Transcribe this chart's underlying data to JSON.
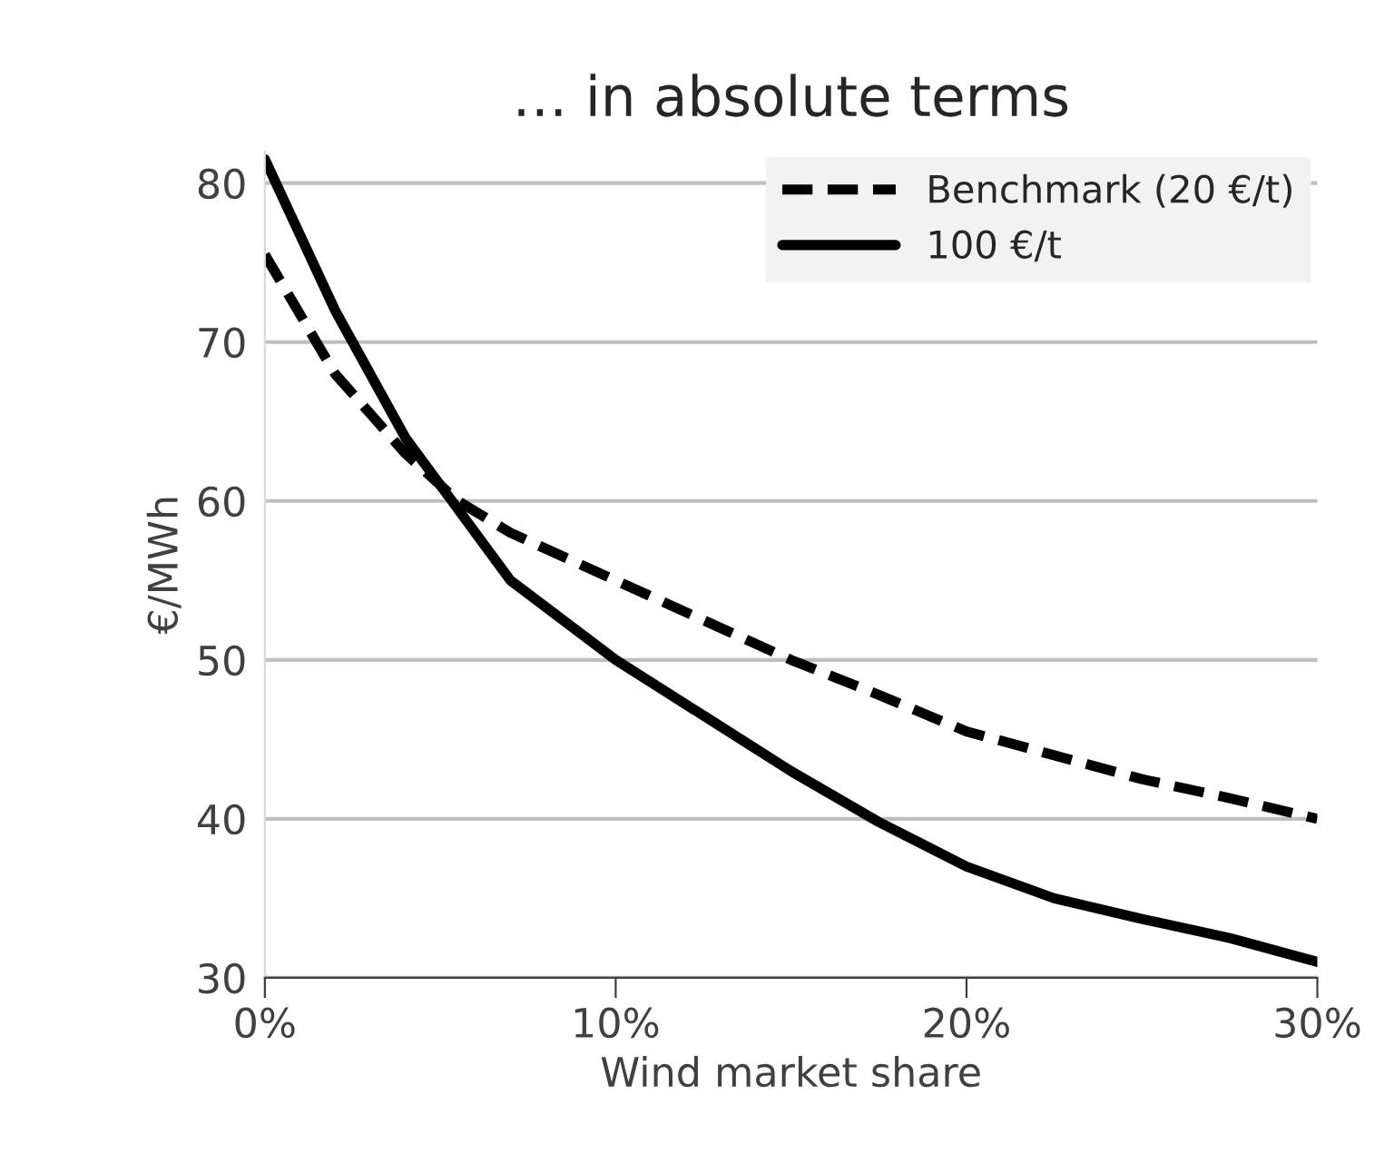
{
  "chart_data": {
    "type": "line",
    "title": "… in absolute terms",
    "xlabel": "Wind market share",
    "ylabel": "€/MWh",
    "x": [
      0,
      2,
      4,
      5.5,
      7,
      10,
      12.5,
      15,
      17.5,
      20,
      22.5,
      25,
      27.5,
      30
    ],
    "series": [
      {
        "name": "Benchmark (20 €/t)",
        "color": "#000000",
        "line_style": "dashed",
        "values": [
          75.5,
          68,
          63,
          60,
          58,
          55,
          52.5,
          50,
          47.8,
          45.5,
          44,
          42.5,
          41.3,
          40
        ]
      },
      {
        "name": "100 €/t",
        "color": "#000000",
        "line_style": "solid",
        "values": [
          81.5,
          72,
          64,
          59.5,
          55,
          50,
          46.5,
          43,
          39.8,
          37,
          35,
          33.7,
          32.5,
          31
        ]
      }
    ],
    "xlim": [
      0,
      30
    ],
    "xticks": [
      {
        "value": 0,
        "label": "0%"
      },
      {
        "value": 10,
        "label": "10%"
      },
      {
        "value": 20,
        "label": "20%"
      },
      {
        "value": 30,
        "label": "30%"
      }
    ],
    "ylim": [
      30,
      82
    ],
    "yticks": [
      30,
      40,
      50,
      60,
      70,
      80
    ],
    "grid": "y",
    "legend": "top right"
  }
}
